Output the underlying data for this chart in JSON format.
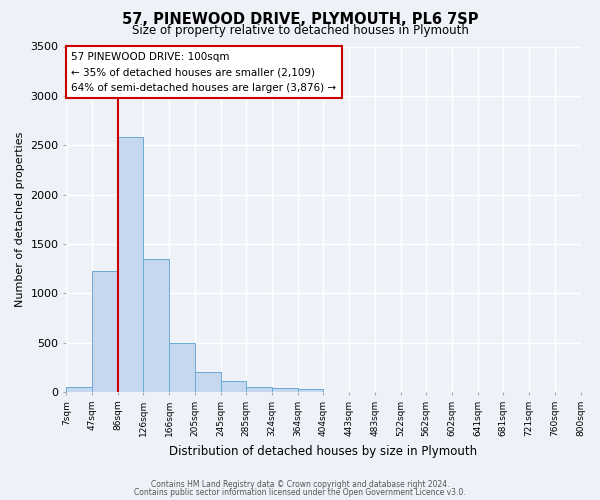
{
  "title": "57, PINEWOOD DRIVE, PLYMOUTH, PL6 7SP",
  "subtitle": "Size of property relative to detached houses in Plymouth",
  "xlabel": "Distribution of detached houses by size in Plymouth",
  "ylabel": "Number of detached properties",
  "bar_color": "#c5d8f0",
  "bar_edge_color": "#6aaad4",
  "bg_color": "#eef2f8",
  "grid_color": "#ffffff",
  "tick_labels": [
    "7sqm",
    "47sqm",
    "86sqm",
    "126sqm",
    "166sqm",
    "205sqm",
    "245sqm",
    "285sqm",
    "324sqm",
    "364sqm",
    "404sqm",
    "443sqm",
    "483sqm",
    "522sqm",
    "562sqm",
    "602sqm",
    "641sqm",
    "681sqm",
    "721sqm",
    "760sqm",
    "800sqm"
  ],
  "bar_values": [
    50,
    1230,
    2580,
    1350,
    500,
    200,
    110,
    50,
    40,
    30,
    0,
    0,
    0,
    0,
    0,
    0,
    0,
    0,
    0,
    0
  ],
  "ylim": [
    0,
    3500
  ],
  "yticks": [
    0,
    500,
    1000,
    1500,
    2000,
    2500,
    3000,
    3500
  ],
  "vline_color": "#cc0000",
  "annotation_title": "57 PINEWOOD DRIVE: 100sqm",
  "annotation_line1": "← 35% of detached houses are smaller (2,109)",
  "annotation_line2": "64% of semi-detached houses are larger (3,876) →",
  "annotation_box_color": "#ffffff",
  "annotation_box_edge": "#cc0000",
  "footer1": "Contains HM Land Registry data © Crown copyright and database right 2024.",
  "footer2": "Contains public sector information licensed under the Open Government Licence v3.0."
}
